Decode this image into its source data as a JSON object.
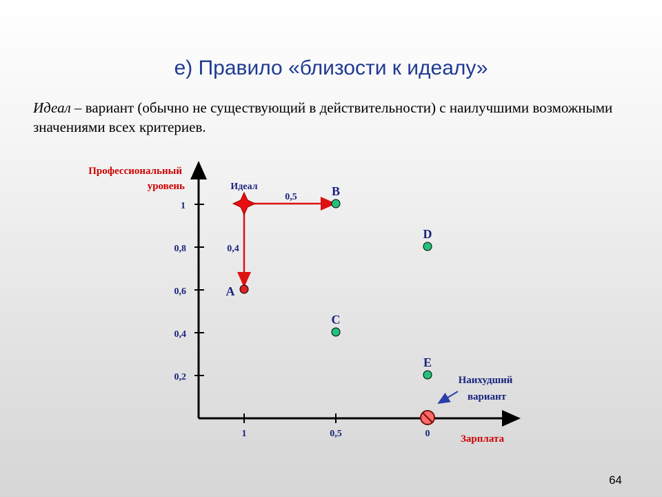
{
  "slide": {
    "title": "е) Правило «близости к идеалу»",
    "definition_term": "Идеал",
    "definition_rest": " – вариант (обычно не существующий в действительности) с наилучшими возможными значениями всех критериев.",
    "page_number": "64"
  },
  "diagram": {
    "y_axis_label_line1": "Профессиональный",
    "y_axis_label_line2": "уровень",
    "x_axis_label": "Зарплата",
    "y_ticks": [
      "1",
      "0,8",
      "0,6",
      "0,4",
      "0,2"
    ],
    "x_ticks": [
      "1",
      "0,5",
      "0"
    ],
    "ideal_label": "Идеал",
    "dist_horizontal_label": "0,5",
    "dist_vertical_label": "0,4",
    "points": [
      {
        "name": "A",
        "salary": 1,
        "level": 0.6,
        "color": "#dd2222"
      },
      {
        "name": "B",
        "salary": 0.5,
        "level": 1,
        "color": "#22c27a"
      },
      {
        "name": "C",
        "salary": 0.5,
        "level": 0.4,
        "color": "#22c27a"
      },
      {
        "name": "D",
        "salary": 0,
        "level": 0.8,
        "color": "#22c27a"
      },
      {
        "name": "E",
        "salary": 0,
        "level": 0.2,
        "color": "#22c27a"
      }
    ],
    "ideal": {
      "salary": 1,
      "level": 1,
      "color": "#e81010"
    },
    "worst": {
      "salary": 0,
      "level": 0,
      "label_line1": "Наихудший",
      "label_line2": "вариант"
    },
    "colors": {
      "axis": "#000000",
      "arrow": "#dd1111",
      "point_label": "#1a237e",
      "axis_label": "#cc0000",
      "worst_arrow": "#2a3ea8"
    }
  }
}
